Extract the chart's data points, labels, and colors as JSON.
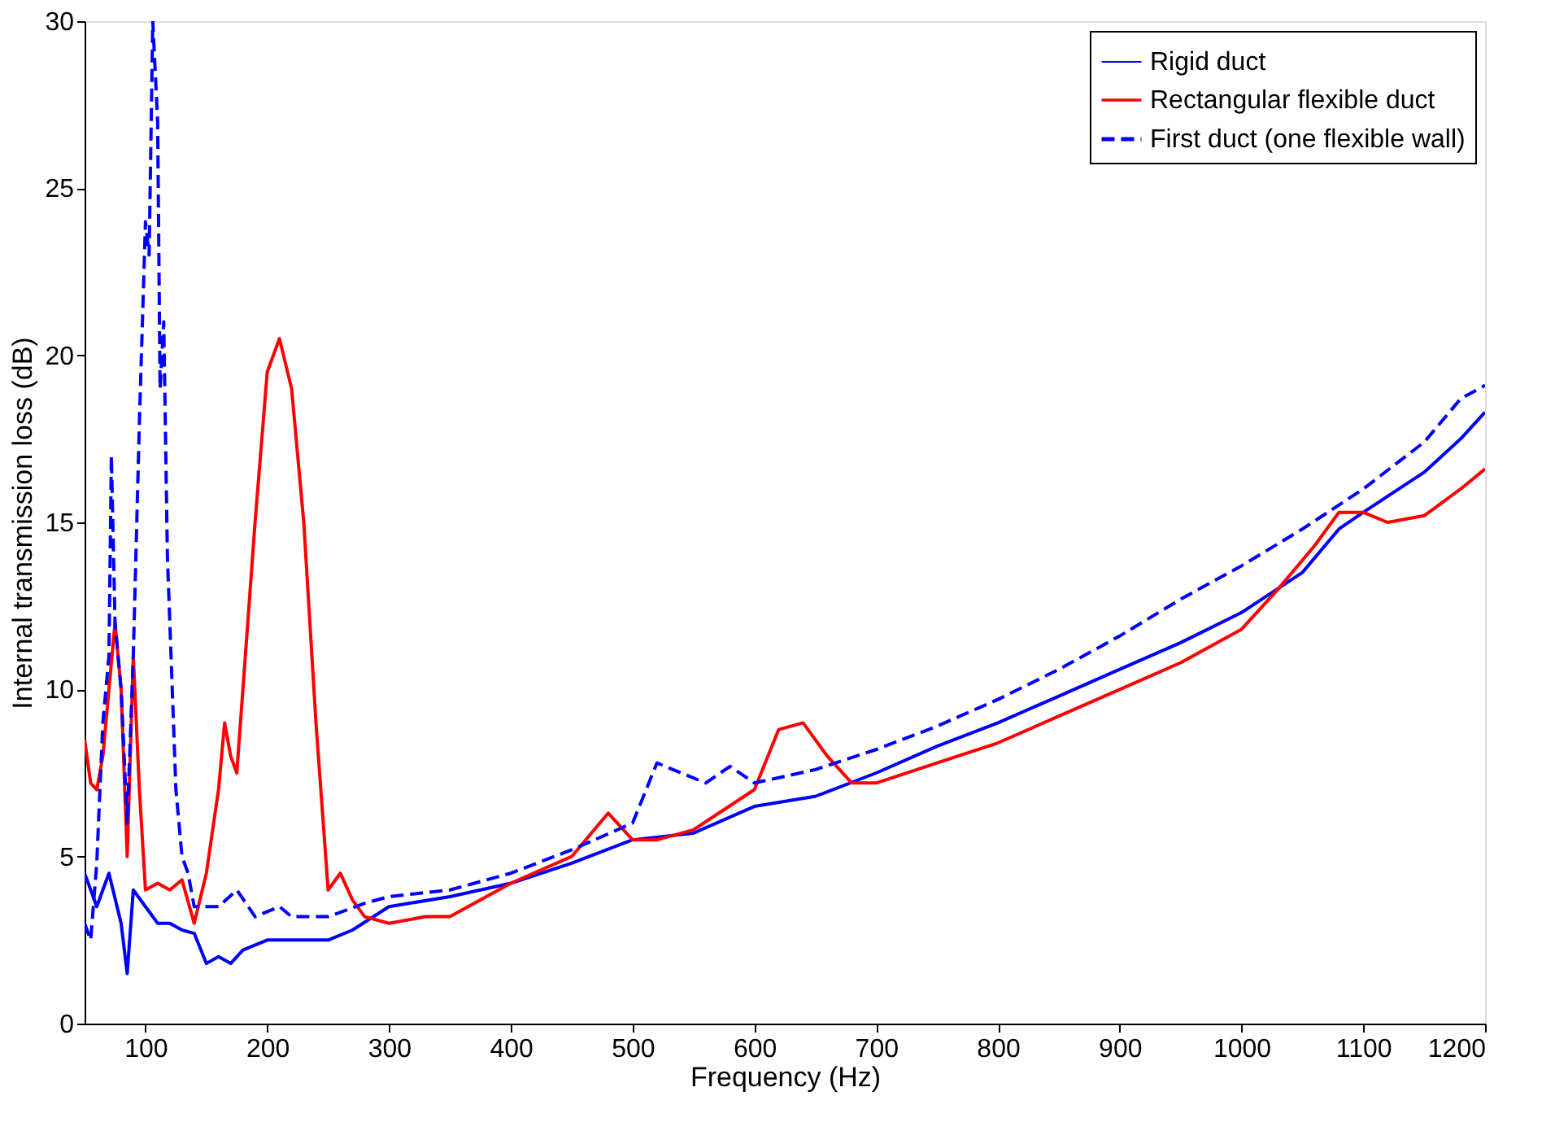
{
  "chart_data": {
    "type": "line",
    "xlabel": "Frequency (Hz)",
    "ylabel": "Internal transmission loss (dB)",
    "xlim": [
      50,
      1200
    ],
    "xticks": [
      100,
      200,
      300,
      400,
      500,
      600,
      700,
      800,
      900,
      1000,
      1100,
      1200
    ],
    "ylim": [
      0,
      30
    ],
    "yticks": [
      0,
      5,
      10,
      15,
      20,
      25,
      30
    ],
    "grid": false,
    "legend": "top right",
    "series": [
      {
        "name": "Rigid duct",
        "color": "#0000ff",
        "line_style": "solid",
        "x": [
          50,
          60,
          70,
          80,
          85,
          90,
          100,
          110,
          120,
          130,
          140,
          150,
          160,
          170,
          180,
          200,
          220,
          250,
          270,
          300,
          350,
          400,
          450,
          500,
          550,
          600,
          650,
          700,
          750,
          800,
          850,
          900,
          950,
          1000,
          1050,
          1080,
          1100,
          1150,
          1180,
          1200
        ],
        "values": [
          4.5,
          3.5,
          4.5,
          3,
          1.5,
          4,
          3.5,
          3,
          3,
          2.8,
          2.7,
          1.8,
          2,
          1.8,
          2.2,
          2.5,
          2.5,
          2.5,
          2.8,
          3.5,
          3.8,
          4.2,
          4.8,
          5.5,
          5.7,
          6.5,
          6.8,
          7.5,
          8.3,
          9,
          9.8,
          10.6,
          11.4,
          12.3,
          13.5,
          14.8,
          15.3,
          16.5,
          17.5,
          18.3
        ]
      },
      {
        "name": "Rectangular flexible duct",
        "color": "#ff0000",
        "line_style": "solid",
        "x": [
          50,
          55,
          60,
          65,
          70,
          75,
          80,
          85,
          90,
          95,
          100,
          110,
          120,
          130,
          140,
          150,
          160,
          165,
          170,
          175,
          180,
          190,
          200,
          210,
          220,
          230,
          240,
          250,
          260,
          270,
          280,
          300,
          330,
          350,
          400,
          450,
          480,
          500,
          520,
          550,
          600,
          620,
          640,
          660,
          680,
          700,
          750,
          800,
          850,
          900,
          950,
          1000,
          1030,
          1060,
          1080,
          1100,
          1120,
          1150,
          1180,
          1200
        ],
        "values": [
          8.5,
          7.2,
          7,
          8,
          10,
          12,
          10,
          5,
          11,
          7,
          4,
          4.2,
          4,
          4.3,
          3,
          4.5,
          7,
          9,
          8,
          7.5,
          10,
          15,
          19.5,
          20.5,
          19,
          15,
          9,
          4,
          4.5,
          3.7,
          3.2,
          3,
          3.2,
          3.2,
          4.2,
          5,
          6.3,
          5.5,
          5.5,
          5.8,
          7,
          8.8,
          9,
          8,
          7.2,
          7.2,
          7.8,
          8.4,
          9.2,
          10,
          10.8,
          11.8,
          13,
          14.3,
          15.3,
          15.3,
          15,
          15.2,
          16,
          16.6
        ]
      },
      {
        "name": "First duct (one flexible wall)",
        "color": "#0000ff",
        "line_style": "dashed",
        "x": [
          50,
          55,
          60,
          65,
          70,
          72,
          75,
          80,
          85,
          90,
          95,
          100,
          103,
          106,
          110,
          112,
          115,
          118,
          122,
          125,
          130,
          135,
          140,
          160,
          175,
          190,
          210,
          220,
          250,
          280,
          300,
          350,
          400,
          450,
          500,
          520,
          540,
          560,
          580,
          600,
          650,
          700,
          750,
          800,
          850,
          900,
          950,
          1000,
          1050,
          1100,
          1150,
          1180,
          1200
        ],
        "values": [
          3,
          2.5,
          4.8,
          9,
          11,
          17,
          12,
          10,
          6,
          11,
          18,
          24,
          23,
          30,
          27,
          19,
          21,
          14,
          10,
          7,
          5,
          4.5,
          3.5,
          3.5,
          4,
          3.2,
          3.5,
          3.2,
          3.2,
          3.6,
          3.8,
          4,
          4.5,
          5.2,
          6,
          7.8,
          7.5,
          7.2,
          7.7,
          7.2,
          7.6,
          8.2,
          8.9,
          9.7,
          10.6,
          11.6,
          12.7,
          13.7,
          14.8,
          16,
          17.4,
          18.7,
          19.1
        ]
      }
    ]
  }
}
